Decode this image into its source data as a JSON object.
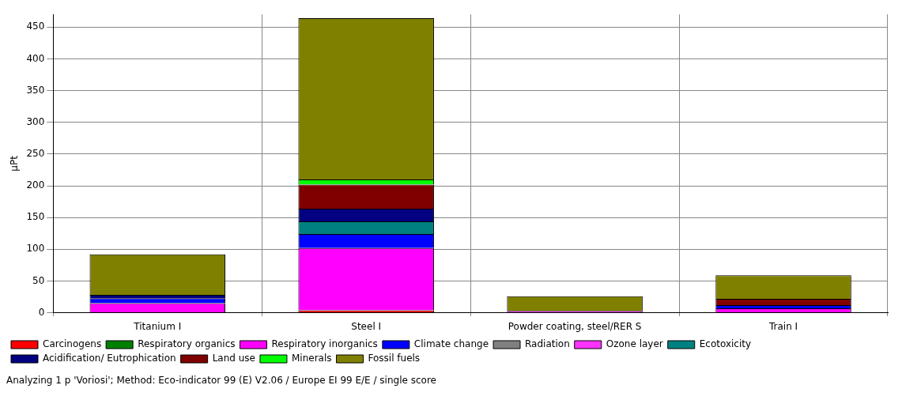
{
  "chart_data": {
    "type": "bar",
    "stacked": true,
    "ylabel": "µPt",
    "categories": [
      "Titanium I",
      "Steel I",
      "Powder coating, steel/RER S",
      "Train I"
    ],
    "series": [
      {
        "name": "Carcinogens",
        "color": "#ff0000",
        "values": [
          0,
          4,
          0,
          0
        ]
      },
      {
        "name": "Respiratory organics",
        "color": "#008000",
        "values": [
          0,
          0,
          0,
          0
        ]
      },
      {
        "name": "Respiratory inorganics",
        "color": "#ff00ff",
        "values": [
          15,
          98,
          3,
          7
        ]
      },
      {
        "name": "Climate change",
        "color": "#0000ff",
        "values": [
          8,
          22,
          0,
          5
        ]
      },
      {
        "name": "Radiation",
        "color": "#808080",
        "values": [
          0,
          0,
          0,
          0
        ]
      },
      {
        "name": "Ozone layer",
        "color": "#ff33ff",
        "values": [
          0,
          0,
          0,
          0
        ]
      },
      {
        "name": "Ecotoxicity",
        "color": "#008080",
        "values": [
          0,
          20,
          0,
          0
        ]
      },
      {
        "name": "Acidification/ Eutrophication",
        "color": "#000080",
        "values": [
          5,
          20,
          0,
          0
        ]
      },
      {
        "name": "Land use",
        "color": "#800000",
        "values": [
          0,
          38,
          0,
          10
        ]
      },
      {
        "name": "Minerals",
        "color": "#00ff00",
        "values": [
          0,
          8,
          0,
          0
        ]
      },
      {
        "name": "Fossil fuels",
        "color": "#808000",
        "values": [
          64,
          254,
          23,
          37
        ]
      }
    ],
    "ylim": [
      0,
      470
    ],
    "yticks": [
      0,
      50,
      100,
      150,
      200,
      250,
      300,
      350,
      400,
      450
    ],
    "grid": true,
    "legend": "bottom",
    "annotations": [
      "Analyzing 1 p 'Voriosi';  Method: Eco-indicator 99 (E) V2.06 / Europe EI 99 E/E / single score"
    ]
  }
}
